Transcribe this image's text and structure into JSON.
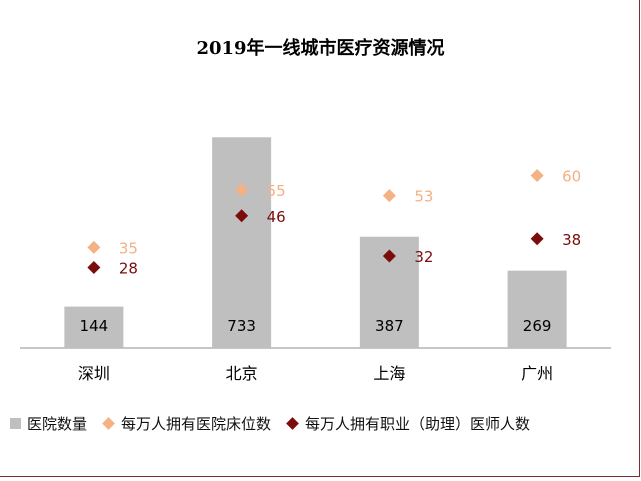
{
  "chart_data": {
    "type": "bar",
    "title": "2019年一线城市医疗资源情况",
    "categories": [
      "深圳",
      "北京",
      "上海",
      "广州"
    ],
    "series": [
      {
        "name": "医院数量",
        "kind": "bar",
        "color": "#bfbfbf",
        "values": [
          144,
          733,
          387,
          269
        ]
      },
      {
        "name": "每万人拥有医院床位数",
        "kind": "scatter",
        "marker": "diamond",
        "color": "#f4b183",
        "values": [
          35,
          55,
          53,
          60
        ]
      },
      {
        "name": "每万人拥有职业（助理）医师人数",
        "kind": "scatter",
        "marker": "diamond",
        "color": "#7b0c0c",
        "values": [
          28,
          46,
          32,
          38
        ]
      }
    ],
    "bar_axis_range": [
      0,
      800
    ],
    "marker_axis_range": [
      0,
      80
    ],
    "axes_visible": false,
    "grid": false,
    "legend_position": "bottom"
  }
}
